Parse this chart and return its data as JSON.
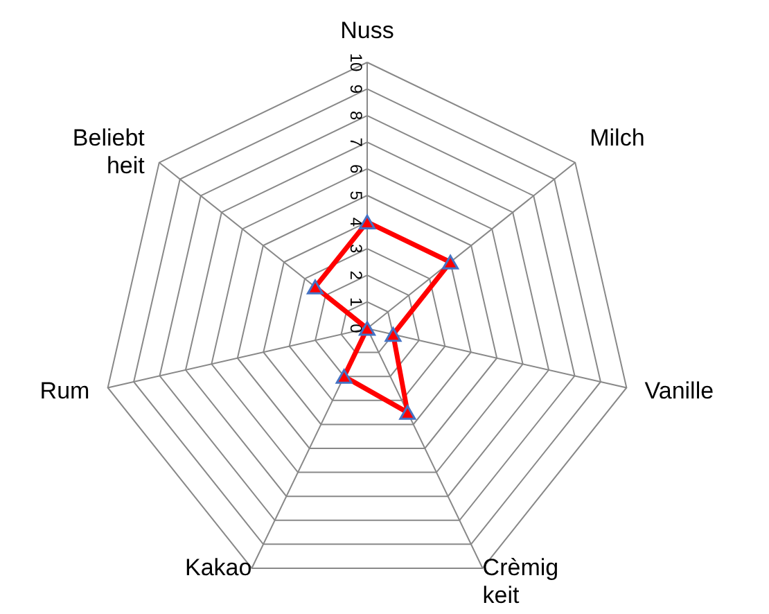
{
  "chart_data": {
    "type": "radar",
    "categories": [
      "Nuss",
      "Milch",
      "Vanille",
      "Crèmig keit",
      "Kakao",
      "Rum",
      "Beliebt heit"
    ],
    "series": [
      {
        "color": "#ff0000",
        "values": [
          4,
          4,
          1,
          3.5,
          2,
          0,
          2.5
        ]
      }
    ],
    "ylim": [
      0,
      10
    ],
    "yticks": [
      0,
      1,
      2,
      3,
      4,
      5,
      6,
      7,
      8,
      9,
      10
    ],
    "grid": true,
    "marker": "triangle",
    "line_style": "solid"
  }
}
